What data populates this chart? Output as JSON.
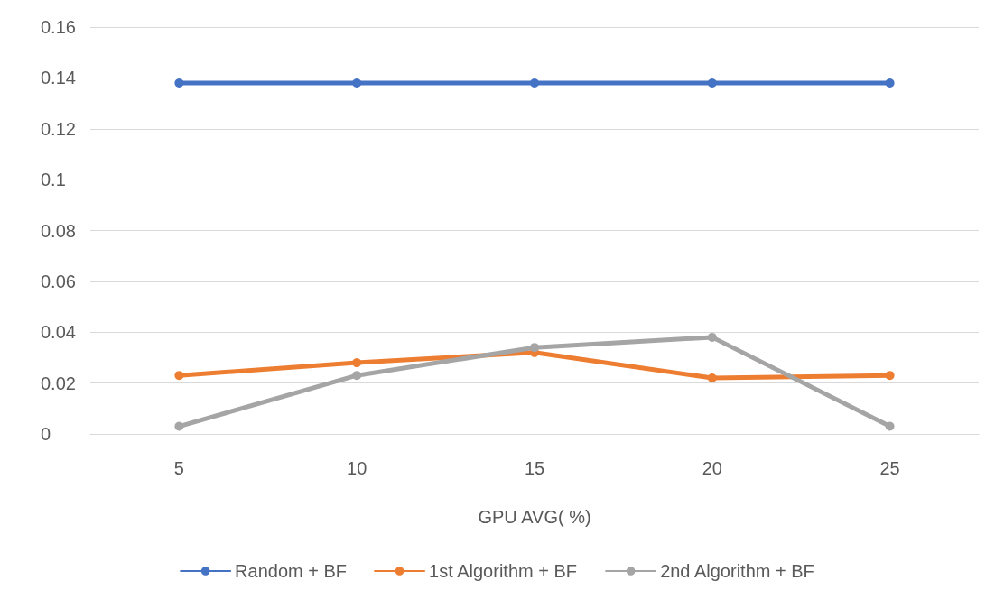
{
  "chart_data": {
    "type": "line",
    "xlabel": "GPU AVG( %)",
    "categories": [
      "5",
      "10",
      "15",
      "20",
      "25"
    ],
    "series": [
      {
        "name": "Random + BF",
        "color": "#4472c4",
        "values": [
          0.138,
          0.138,
          0.138,
          0.138,
          0.138
        ]
      },
      {
        "name": "1st Algorithm + BF",
        "color": "#ed7d31",
        "values": [
          0.023,
          0.028,
          0.032,
          0.022,
          0.023
        ]
      },
      {
        "name": "2nd Algorithm + BF",
        "color": "#a5a5a5",
        "values": [
          0.003,
          0.023,
          0.034,
          0.038,
          0.003
        ]
      }
    ],
    "ylim": [
      0,
      0.16
    ],
    "yticks": [
      0,
      0.02,
      0.04,
      0.06,
      0.08,
      0.1,
      0.12,
      0.14,
      0.16
    ],
    "grid": "y",
    "legend": "bottom",
    "marker": "circle",
    "line_style": "solid"
  }
}
